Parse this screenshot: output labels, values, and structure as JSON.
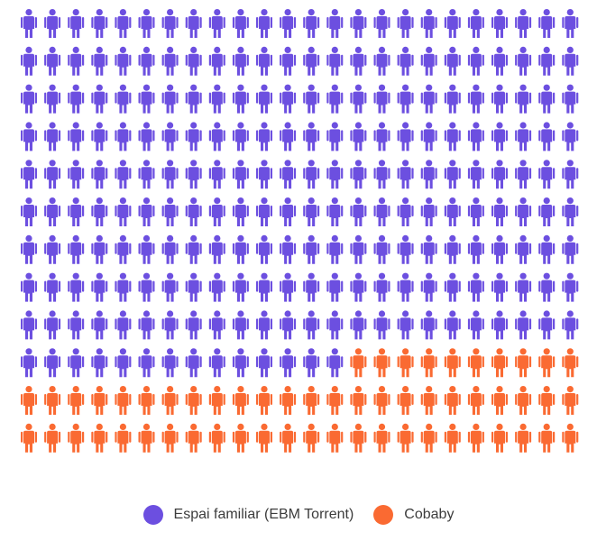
{
  "chart_data": {
    "type": "pictogram",
    "icon": "person-icon",
    "grid": {
      "rows": 12,
      "columns": 24
    },
    "series": [
      {
        "name": "Espai familiar (EBM Torrent)",
        "count": 230,
        "color": "#6c4fe0"
      },
      {
        "name": "Cobaby",
        "count": 58,
        "color": "#fa6a32"
      }
    ],
    "legend": {
      "position": "bottom-center"
    }
  }
}
